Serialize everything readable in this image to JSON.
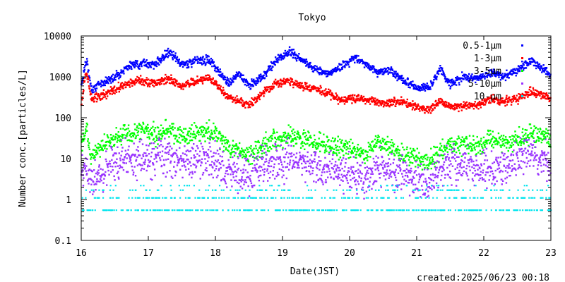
{
  "footer": {
    "created": "created:2025/06/23 00:18"
  },
  "chart_data": {
    "type": "scatter",
    "title": "Tokyo",
    "xlabel": "Date(JST)",
    "ylabel": "Number conc.[particles/L]",
    "yscale": "log",
    "xlim": [
      16,
      23
    ],
    "ylim": [
      0.1,
      10000
    ],
    "x_ticks": [
      "16",
      "17",
      "18",
      "19",
      "20",
      "21",
      "22",
      "23"
    ],
    "y_ticks": [
      "0.1",
      "1",
      "10",
      "100",
      "1000",
      "10000"
    ],
    "legend_position": "top-right",
    "series": [
      {
        "name": "0.5-1μm",
        "color": "#0000ff",
        "x": [
          16.0,
          16.05,
          16.08,
          16.15,
          16.3,
          16.5,
          16.7,
          16.9,
          17.1,
          17.3,
          17.5,
          17.7,
          17.9,
          18.0,
          18.2,
          18.35,
          18.5,
          18.7,
          18.9,
          19.1,
          19.3,
          19.5,
          19.7,
          19.9,
          20.1,
          20.25,
          20.4,
          20.6,
          20.8,
          21.0,
          21.2,
          21.35,
          21.5,
          21.7,
          21.9,
          22.1,
          22.3,
          22.5,
          22.7,
          22.9,
          23.0
        ],
        "y": [
          600,
          1800,
          2500,
          500,
          700,
          1000,
          1800,
          2200,
          2000,
          4000,
          2000,
          2500,
          2600,
          1800,
          700,
          1200,
          600,
          1000,
          2500,
          4000,
          2500,
          1500,
          1200,
          2000,
          3000,
          2000,
          1300,
          1500,
          800,
          550,
          550,
          1600,
          650,
          1000,
          900,
          1300,
          1000,
          1500,
          2500,
          1500,
          1100
        ]
      },
      {
        "name": "1-3μm",
        "color": "#ff0000",
        "x": [
          16.0,
          16.05,
          16.08,
          16.15,
          16.3,
          16.5,
          16.7,
          16.9,
          17.1,
          17.3,
          17.5,
          17.7,
          17.9,
          18.0,
          18.2,
          18.35,
          18.5,
          18.7,
          18.9,
          19.1,
          19.3,
          19.5,
          19.7,
          19.9,
          20.1,
          20.25,
          20.4,
          20.6,
          20.8,
          21.0,
          21.2,
          21.35,
          21.5,
          21.7,
          21.9,
          22.1,
          22.3,
          22.5,
          22.7,
          22.9,
          23.0
        ],
        "y": [
          200,
          900,
          1300,
          300,
          350,
          500,
          700,
          800,
          700,
          900,
          600,
          800,
          900,
          700,
          300,
          250,
          200,
          400,
          700,
          800,
          600,
          500,
          400,
          250,
          300,
          280,
          250,
          230,
          250,
          180,
          160,
          250,
          180,
          200,
          200,
          300,
          250,
          280,
          450,
          350,
          300
        ]
      },
      {
        "name": "3-5μm",
        "color": "#00ff00",
        "x": [
          16.0,
          16.05,
          16.08,
          16.15,
          16.3,
          16.5,
          16.7,
          16.9,
          17.1,
          17.3,
          17.5,
          17.7,
          17.9,
          18.0,
          18.2,
          18.35,
          18.5,
          18.7,
          18.9,
          19.1,
          19.3,
          19.5,
          19.7,
          19.9,
          20.1,
          20.25,
          20.4,
          20.6,
          20.8,
          21.0,
          21.2,
          21.35,
          21.5,
          21.7,
          21.9,
          22.1,
          22.3,
          22.5,
          22.7,
          22.9,
          23.0
        ],
        "y": [
          20,
          40,
          50,
          10,
          20,
          30,
          40,
          45,
          40,
          50,
          35,
          40,
          45,
          40,
          20,
          15,
          12,
          20,
          30,
          35,
          30,
          25,
          20,
          18,
          15,
          12,
          25,
          20,
          12,
          10,
          8,
          15,
          18,
          25,
          20,
          30,
          25,
          30,
          40,
          35,
          25
        ]
      },
      {
        "name": "5-10μm",
        "color": "#9933ff",
        "x": [
          16.0,
          16.05,
          16.08,
          16.15,
          16.3,
          16.5,
          16.7,
          16.9,
          17.1,
          17.3,
          17.5,
          17.7,
          17.9,
          18.0,
          18.2,
          18.35,
          18.5,
          18.7,
          18.9,
          19.1,
          19.3,
          19.5,
          19.7,
          19.9,
          20.1,
          20.25,
          20.4,
          20.6,
          20.8,
          21.0,
          21.2,
          21.35,
          21.5,
          21.7,
          21.9,
          22.1,
          22.3,
          22.5,
          22.7,
          22.9,
          23.0
        ],
        "y": [
          5,
          6,
          4,
          3,
          5,
          8,
          10,
          12,
          10,
          12,
          8,
          10,
          12,
          8,
          5,
          4,
          4,
          6,
          8,
          10,
          8,
          6,
          5,
          4,
          4,
          3,
          6,
          5,
          4,
          3,
          2.5,
          6,
          8,
          8,
          5,
          6,
          6,
          10,
          14,
          8,
          5
        ]
      },
      {
        "name": "10-μm",
        "color": "#00e5ee",
        "x": [
          16.0,
          16.15,
          16.3,
          16.5,
          16.7,
          16.9,
          17.1,
          17.3,
          17.5,
          17.7,
          17.9,
          18.1,
          18.3,
          18.5,
          18.7,
          18.9,
          19.1,
          19.3,
          19.5,
          19.7,
          19.9,
          20.1,
          20.3,
          20.5,
          20.7,
          20.9,
          21.1,
          21.3,
          21.5,
          21.7,
          21.9,
          22.1,
          22.3,
          22.5,
          22.7,
          22.9,
          23.0
        ],
        "y": [
          1.1,
          0.55,
          1.7,
          1.1,
          0.55,
          1.7,
          1.1,
          2.2,
          0.55,
          1.1,
          1.7,
          0.55,
          1.1,
          0.55,
          1.7,
          1.1,
          0.55,
          1.1,
          1.7,
          0.55,
          1.1,
          0.55,
          1.7,
          1.1,
          0.55,
          1.1,
          0.55,
          1.7,
          1.1,
          0.55,
          1.1,
          1.7,
          0.55,
          1.1,
          2.2,
          1.1,
          0.55
        ]
      }
    ]
  }
}
